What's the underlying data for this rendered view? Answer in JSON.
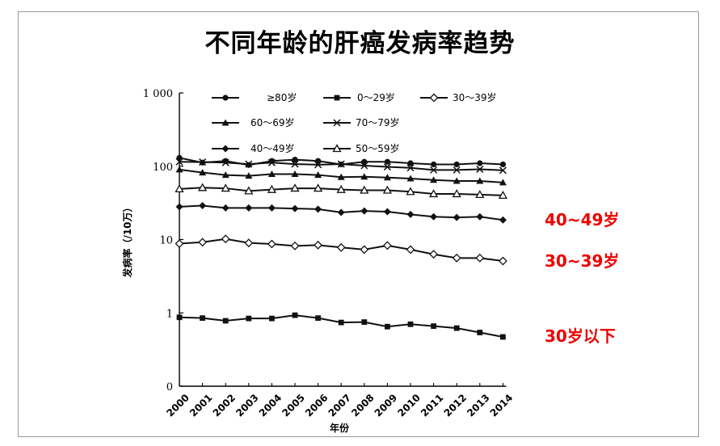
{
  "chart_data": {
    "type": "line",
    "title": "不同年龄的肝癌发病率趋势",
    "xlabel": "年份",
    "ylabel": "发病率（/10万）",
    "y_scale": "log",
    "ylim": [
      0,
      1000
    ],
    "y_ticks": [
      "0",
      "1",
      "10",
      "100",
      "1 000"
    ],
    "x": [
      "2000",
      "2001",
      "2002",
      "2003",
      "2004",
      "2005",
      "2006",
      "2007",
      "2008",
      "2009",
      "2010",
      "2011",
      "2012",
      "2013",
      "2014"
    ],
    "grid": false,
    "legend_position": "top-left",
    "series": [
      {
        "name": "≥80岁",
        "marker": "filled-circle",
        "values": [
          130,
          112,
          118,
          104,
          118,
          123,
          118,
          106,
          115,
          115,
          110,
          106,
          106,
          110,
          106
        ]
      },
      {
        "name": "0～29岁",
        "marker": "filled-square",
        "values": [
          0.87,
          0.85,
          0.78,
          0.84,
          0.84,
          0.93,
          0.85,
          0.74,
          0.75,
          0.65,
          0.7,
          0.66,
          0.62,
          0.54,
          0.47
        ]
      },
      {
        "name": "30～39岁",
        "marker": "open-diamond",
        "values": [
          8.8,
          9.2,
          10.2,
          9.0,
          8.7,
          8.2,
          8.4,
          7.8,
          7.3,
          8.3,
          7.3,
          6.3,
          5.6,
          5.6,
          5.1
        ]
      },
      {
        "name": "60～69岁",
        "marker": "filled-triangle",
        "values": [
          90,
          82,
          76,
          74,
          78,
          78,
          76,
          71,
          72,
          70,
          68,
          65,
          63,
          63,
          60
        ]
      },
      {
        "name": "70～79岁",
        "marker": "cross",
        "values": [
          115,
          114,
          112,
          107,
          112,
          107,
          105,
          107,
          102,
          98,
          95,
          89,
          89,
          91,
          88
        ]
      },
      {
        "name": "40～49岁",
        "marker": "filled-diamond",
        "values": [
          28,
          29,
          27,
          27,
          27,
          26.5,
          26,
          23.5,
          24.5,
          24,
          22,
          20.5,
          20,
          20.5,
          18.5
        ]
      },
      {
        "name": "50～59岁",
        "marker": "open-triangle",
        "values": [
          49,
          51,
          50,
          46,
          48,
          50,
          50,
          48,
          47,
          47,
          45,
          42,
          42,
          41,
          40
        ]
      }
    ],
    "annotations": [
      {
        "text": "40~49岁",
        "series": "40～49岁"
      },
      {
        "text": "30~39岁",
        "series": "30～39岁"
      },
      {
        "text": "30岁以下",
        "series": "0～29岁"
      }
    ]
  },
  "colors": {
    "annotation": "#ee0000",
    "line": "#111111"
  }
}
